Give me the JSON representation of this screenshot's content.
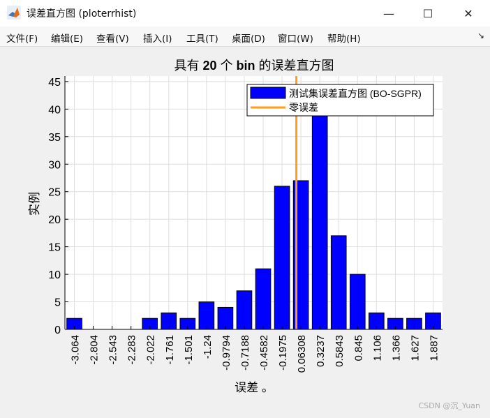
{
  "window": {
    "title": "误差直方图 (ploterrhist)",
    "minimize": "—",
    "maximize": "☐",
    "close": "✕"
  },
  "menu": {
    "items": [
      "文件(F)",
      "编辑(E)",
      "查看(V)",
      "插入(I)",
      "工具(T)",
      "桌面(D)",
      "窗口(W)",
      "帮助(H)"
    ],
    "overflow": "↘"
  },
  "chart_data": {
    "type": "bar",
    "title_prefix": "具有 ",
    "title_bold1": "20",
    "title_mid": " 个 ",
    "title_bold2": "bin",
    "title_suffix": " 的误差直方图",
    "xlabel": "误差 。",
    "ylabel": "实例",
    "categories": [
      "-3.064",
      "-2.804",
      "-2.543",
      "-2.283",
      "-2.022",
      "-1.761",
      "-1.501",
      "-1.24",
      "-0.9794",
      "-0.7188",
      "-0.4582",
      "-0.1975",
      "0.06308",
      "0.3237",
      "0.5843",
      "0.845",
      "1.106",
      "1.366",
      "1.627",
      "1.887"
    ],
    "series": [
      {
        "name": "测试集误差直方图 (BO-SGPR)",
        "color": "#0000ff",
        "values": [
          2,
          0,
          0,
          0,
          2,
          3,
          2,
          5,
          4,
          7,
          11,
          26,
          27,
          39,
          17,
          10,
          3,
          2,
          2,
          3
        ]
      }
    ],
    "zero_line": {
      "name": "零误差",
      "color": "#ff9e1b",
      "x": 0
    },
    "ylim": [
      0,
      46
    ],
    "yticks": [
      0,
      5,
      10,
      15,
      20,
      25,
      30,
      35,
      40,
      45
    ],
    "grid": true,
    "legend_position": "top-right"
  },
  "watermark": "CSDN @沉_Yuan"
}
